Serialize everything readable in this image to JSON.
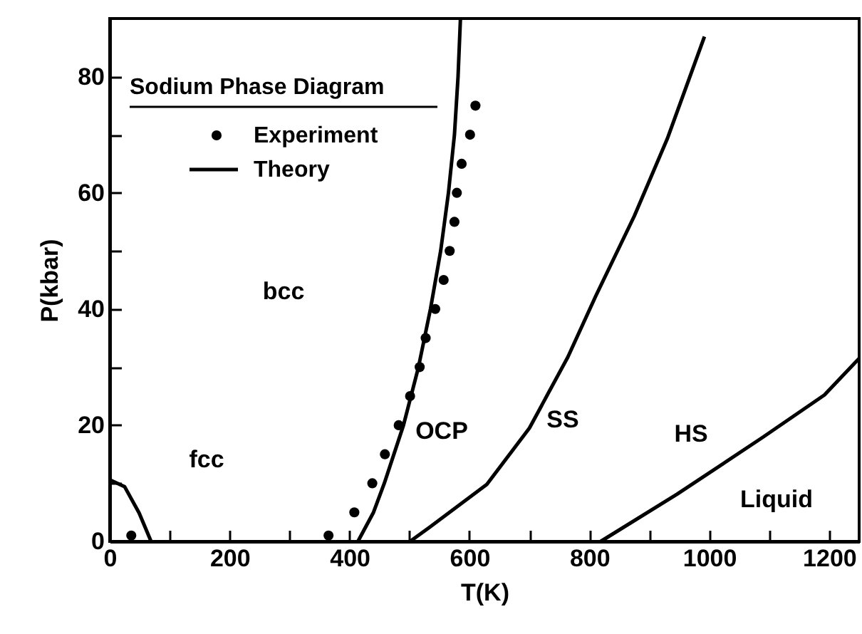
{
  "chart_data": {
    "type": "line",
    "xlabel": "T(K)",
    "ylabel": "P(kbar)",
    "legend_title": "Sodium Phase Diagram",
    "legend": "top left",
    "xlim": [
      0,
      1250
    ],
    "xticks": [
      0,
      {
        "value": 100,
        "label": null
      },
      200,
      {
        "value": 300,
        "label": null
      },
      400,
      {
        "value": 500,
        "label": null
      },
      600,
      {
        "value": 700,
        "label": null
      },
      800,
      {
        "value": 900,
        "label": null
      },
      1000,
      {
        "value": 1100,
        "label": null
      },
      1200
    ],
    "ylim": [
      0,
      90
    ],
    "yticks": [
      0,
      {
        "value": 10,
        "label": null
      },
      20,
      {
        "value": 30,
        "label": null
      },
      40,
      {
        "value": 50,
        "label": null
      },
      60,
      {
        "value": 70,
        "label": null
      },
      80
    ],
    "series": [
      {
        "name": "Experiment",
        "type": "scatter",
        "marker": "circle",
        "color": "#000000",
        "x": [
          36,
          365,
          408,
          438,
          459,
          482,
          501,
          517,
          527,
          543,
          557,
          567,
          575,
          579,
          587,
          601,
          610
        ],
        "values": [
          1,
          1,
          5,
          10,
          15,
          20,
          25,
          30,
          35,
          40,
          45,
          50,
          55,
          60,
          65,
          70,
          75
        ]
      },
      {
        "name": "Theory",
        "color": "#000000",
        "x": [
          414,
          440,
          458,
          490,
          515,
          535,
          552,
          565,
          575,
          581,
          585
        ],
        "values": [
          0,
          5,
          10,
          20,
          30,
          40,
          50,
          60,
          70,
          80,
          90
        ]
      },
      {
        "color": "#000000",
        "x": [
          0,
          25,
          49,
          69
        ],
        "values": [
          10.6,
          9.4,
          4.9,
          0
        ]
      },
      {
        "color": "#000000",
        "x": [
          501,
          533,
          629,
          700,
          764,
          811,
          875,
          930,
          992
        ],
        "values": [
          0,
          2.4,
          9.8,
          19.5,
          31.7,
          42.3,
          56,
          69.3,
          86.9
        ]
      },
      {
        "color": "#000000",
        "x": [
          819,
          946,
          1089,
          1192,
          1250
        ],
        "values": [
          0,
          8.1,
          17.9,
          25.2,
          31.5
        ]
      }
    ],
    "annotations": [
      "bcc",
      "fcc",
      "OCP",
      "SS",
      "HS",
      "Liquid"
    ]
  }
}
